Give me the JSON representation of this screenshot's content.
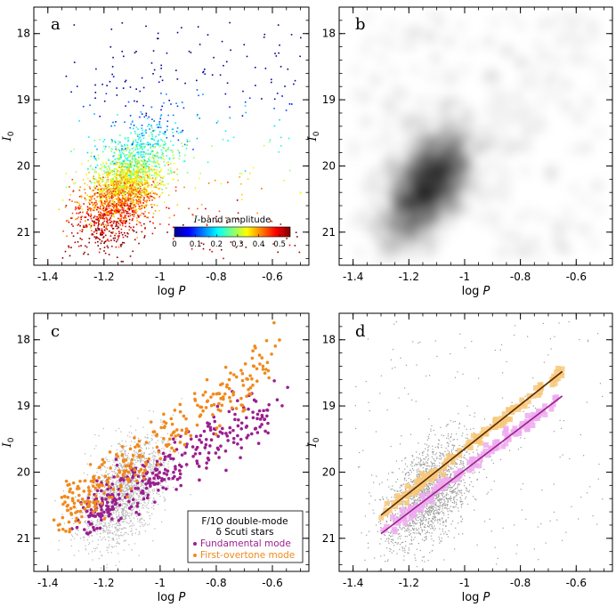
{
  "chart_data": [
    {
      "type": "scatter",
      "panel": "a",
      "xlabel": "log P",
      "ylabel": "I0",
      "xlim": [
        -1.45,
        -0.47
      ],
      "ylim": [
        21.5,
        17.6
      ],
      "xticks": [
        -1.4,
        -1.2,
        -1,
        -0.8,
        -0.6
      ],
      "xtick_labels": [
        "-1.4",
        "-1.2",
        "-1",
        "-0.8",
        "-0.6"
      ],
      "yticks": [
        18,
        19,
        20,
        21
      ],
      "ytick_labels": [
        "18",
        "19",
        "20",
        "21"
      ],
      "color_by": "I-band amplitude",
      "colorbar": {
        "title": "I-band amplitude",
        "range": [
          0,
          0.55
        ],
        "ticks": [
          0,
          0.1,
          0.2,
          0.3,
          0.4,
          0.5
        ],
        "tick_labels": [
          "0",
          "0.1",
          "0.2",
          "0.3",
          "0.4",
          "0.5"
        ],
        "colormap": "jet",
        "placement": "lower-right"
      }
    },
    {
      "type": "heatmap",
      "panel": "b",
      "xlabel": "log P",
      "ylabel": "I0",
      "xlim": [
        -1.45,
        -0.47
      ],
      "ylim": [
        21.5,
        17.6
      ],
      "xticks": [
        -1.4,
        -1.2,
        -1,
        -0.8,
        -0.6
      ],
      "xtick_labels": [
        "-1.4",
        "-1.2",
        "-1",
        "-0.8",
        "-0.6"
      ],
      "yticks": [
        18,
        19,
        20,
        21
      ],
      "ytick_labels": [
        "18",
        "19",
        "20",
        "21"
      ],
      "density_peak": {
        "logP": -1.12,
        "I0": 20.3
      }
    },
    {
      "type": "scatter",
      "panel": "c",
      "xlabel": "log P",
      "ylabel": "I0",
      "xlim": [
        -1.45,
        -0.47
      ],
      "ylim": [
        21.5,
        17.6
      ],
      "xticks": [
        -1.4,
        -1.2,
        -1,
        -0.8,
        -0.6
      ],
      "xtick_labels": [
        "-1.4",
        "-1.2",
        "-1",
        "-0.8",
        "-0.6"
      ],
      "yticks": [
        18,
        19,
        20,
        21
      ],
      "ytick_labels": [
        "18",
        "19",
        "20",
        "21"
      ],
      "legend": {
        "placement": "lower-right",
        "title_line1": "F/1O double-mode",
        "title_line2": "δ Scuti stars",
        "entries": [
          {
            "label": "Fundamental mode",
            "color": "#9b1f8f"
          },
          {
            "label": "First-overtone mode",
            "color": "#f08a1c"
          }
        ]
      },
      "series": [
        {
          "name": "Fundamental mode",
          "color": "#9b1f8f",
          "trend": {
            "x": [
              -1.25,
              -0.6
            ],
            "y": [
              20.65,
              19.0
            ]
          }
        },
        {
          "name": "First-overtone mode",
          "color": "#f08a1c",
          "trend": {
            "x": [
              -1.35,
              -0.6
            ],
            "y": [
              20.6,
              18.3
            ]
          }
        }
      ]
    },
    {
      "type": "scatter",
      "panel": "d",
      "xlabel": "log P",
      "ylabel": "I0",
      "xlim": [
        -1.45,
        -0.47
      ],
      "ylim": [
        21.5,
        17.6
      ],
      "xticks": [
        -1.4,
        -1.2,
        -1,
        -0.8,
        -0.6
      ],
      "xtick_labels": [
        "-1.4",
        "-1.2",
        "-1",
        "-0.8",
        "-0.6"
      ],
      "yticks": [
        18,
        19,
        20,
        21
      ],
      "ytick_labels": [
        "18",
        "19",
        "20",
        "21"
      ],
      "fits": [
        {
          "color": "#f08a1c",
          "x": [
            -1.3,
            -0.65
          ],
          "y": [
            20.65,
            18.48
          ]
        },
        {
          "color": "#9b1f8f",
          "x": [
            -1.3,
            -0.65
          ],
          "y": [
            20.93,
            18.85
          ]
        }
      ]
    }
  ],
  "colors": {
    "fundamental": "#9b1f8f",
    "first_overtone": "#f08a1c",
    "background_stars": "#b5b5b5"
  }
}
